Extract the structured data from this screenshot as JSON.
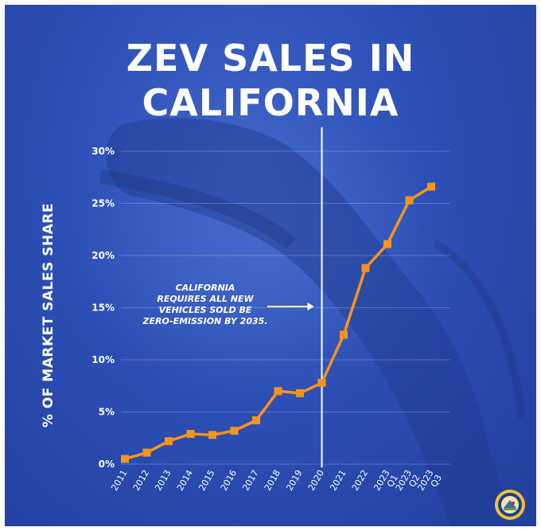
{
  "title": {
    "line1": "ZEV SALES IN",
    "line2": "CALIFORNIA"
  },
  "colors": {
    "background": "#2d4fb6",
    "line": "#f7941d",
    "text": "#ffffff",
    "vline": "#ffffff"
  },
  "chart_data": {
    "type": "line",
    "title": "ZEV SALES IN CALIFORNIA",
    "xlabel": "",
    "ylabel": "% OF MARKET SALES SHARE",
    "categories": [
      "2011",
      "2012",
      "2013",
      "2014",
      "2015",
      "2016",
      "2017",
      "2018",
      "2019",
      "2020",
      "2021",
      "2022",
      "2023 Q1",
      "2023 Q2",
      "2023 Q3"
    ],
    "x_tick_lines": [
      [
        "2011"
      ],
      [
        "2012"
      ],
      [
        "2013"
      ],
      [
        "2014"
      ],
      [
        "2015"
      ],
      [
        "2016"
      ],
      [
        "2017"
      ],
      [
        "2018"
      ],
      [
        "2019"
      ],
      [
        "2020"
      ],
      [
        "2021"
      ],
      [
        "2022"
      ],
      [
        "2023",
        "Q1"
      ],
      [
        "2023",
        "Q2"
      ],
      [
        "2023",
        "Q3"
      ]
    ],
    "values": [
      0.5,
      1.1,
      2.2,
      2.9,
      2.8,
      3.2,
      4.2,
      7.0,
      6.8,
      7.8,
      12.4,
      18.8,
      21.1,
      25.3,
      26.6
    ],
    "ylim": [
      0,
      30
    ],
    "yticks": [
      0,
      5,
      10,
      15,
      20,
      25,
      30
    ],
    "ytick_labels": [
      "0%",
      "5%",
      "10%",
      "15%",
      "20%",
      "25%",
      "30%"
    ],
    "grid": true,
    "legend": "none",
    "reference_line": {
      "at": "2020"
    },
    "annotation": {
      "lines": [
        "CALIFORNIA",
        "REQUIRES ALL NEW",
        "VEHICLES SOLD BE",
        "ZERO-EMISSION BY 2035."
      ],
      "points_to": "2020"
    }
  },
  "seal": {
    "icon": "california-seal-icon"
  }
}
